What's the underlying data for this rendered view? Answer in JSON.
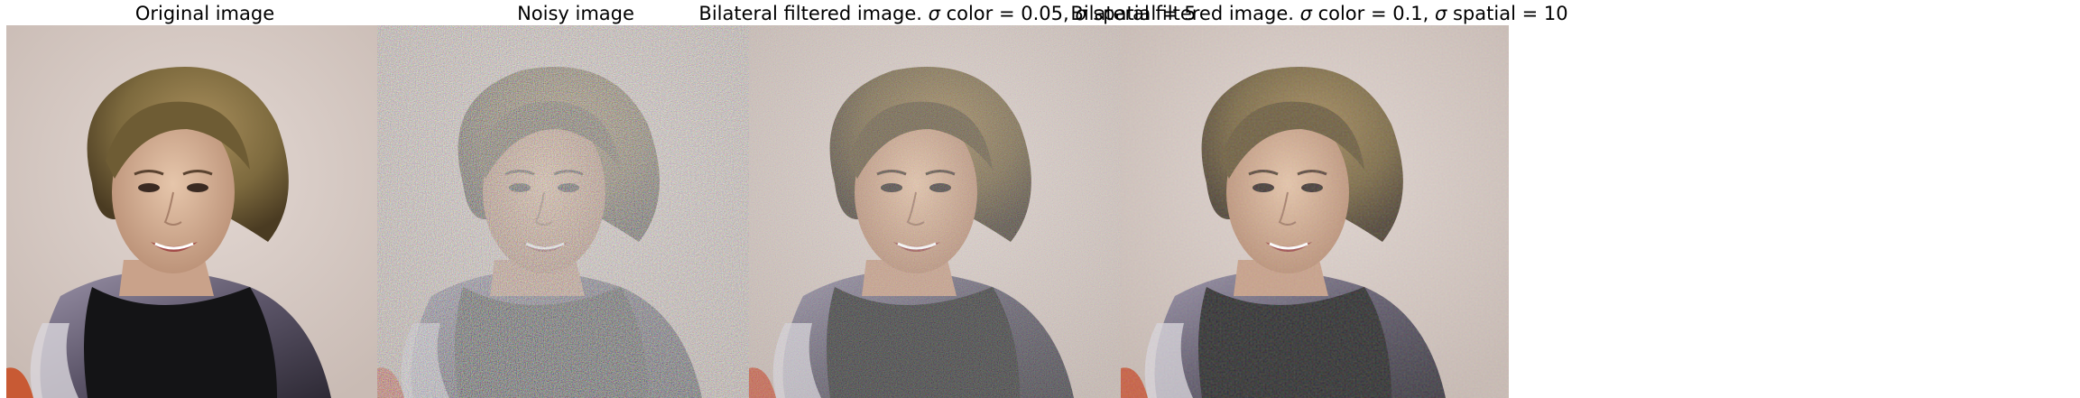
{
  "panels": [
    {
      "title": "Original image",
      "image": "astronaut-portrait-original"
    },
    {
      "title": "Noisy image",
      "image": "astronaut-portrait-noisy"
    },
    {
      "title_prefix": "Bilateral filtered image. ",
      "title_symbol_1": "σ",
      "title_middle": " color = 0.05, ",
      "title_symbol_2": "σ",
      "title_suffix": " spatial = 5",
      "image": "astronaut-portrait-bilateral-light"
    },
    {
      "title_prefix": "Bilateral filtered image. ",
      "title_symbol_1": "σ",
      "title_middle": " color = 0.1, ",
      "title_symbol_2": "σ",
      "title_suffix": " spatial = 10",
      "image": "astronaut-portrait-bilateral-strong"
    }
  ],
  "colors": {
    "background_original": "#d9ccc6",
    "background_noisy": "#cfc3bf",
    "background_bilateral_1": "#d4c7c0",
    "background_bilateral_2": "#d2c4bb",
    "hair": "#7d6a3e",
    "skin": "#d9b69b",
    "suit": "#6a6379",
    "shirt": "#141416",
    "patch": "#c85a34"
  }
}
